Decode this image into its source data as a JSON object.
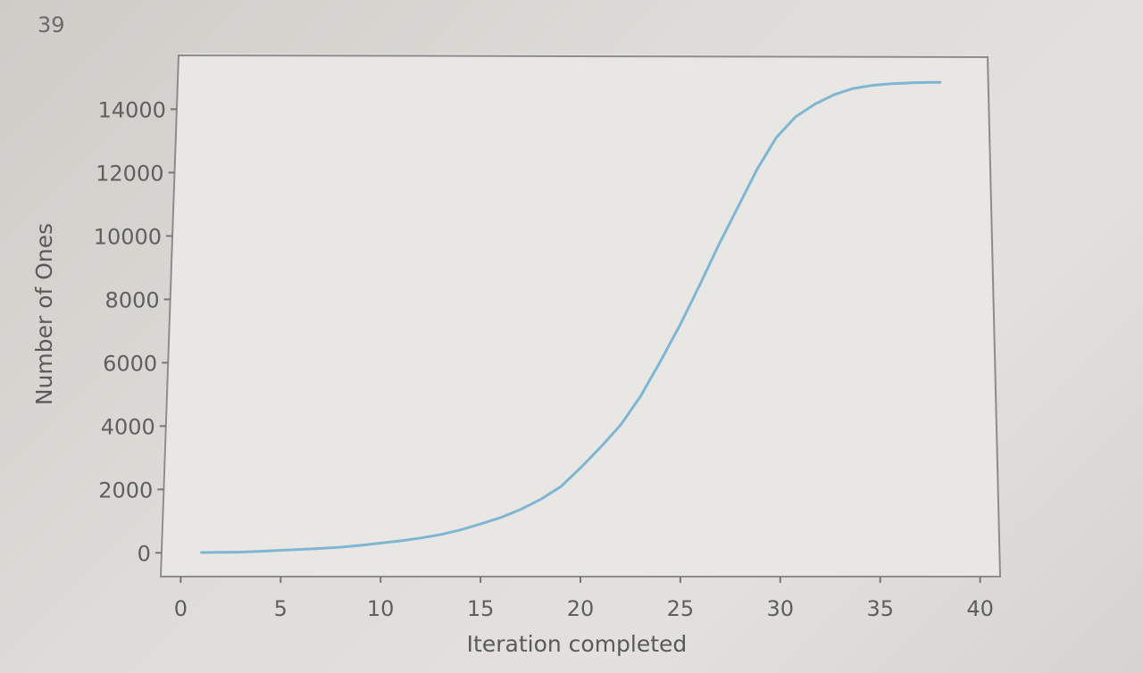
{
  "page": {
    "number": "39"
  },
  "chart_data": {
    "type": "line",
    "title": "",
    "xlabel": "Iteration completed",
    "ylabel": "Number of Ones",
    "xlim": [
      -1,
      41
    ],
    "ylim": [
      -750,
      15700
    ],
    "xticks": [
      0,
      5,
      10,
      15,
      20,
      25,
      30,
      35,
      40
    ],
    "yticks": [
      0,
      2000,
      4000,
      6000,
      8000,
      10000,
      12000,
      14000
    ],
    "grid": false,
    "series_color": "#7fb6d3",
    "series": [
      {
        "x": [
          1,
          2,
          3,
          4,
          5,
          6,
          7,
          8,
          9,
          10,
          11,
          12,
          13,
          14,
          15,
          16,
          17,
          18,
          19,
          20,
          21,
          22,
          23,
          24,
          25,
          26,
          27,
          28,
          29,
          30,
          31,
          32,
          33,
          34,
          35,
          36,
          37,
          38,
          38.5
        ],
        "y": [
          10,
          15,
          25,
          50,
          80,
          110,
          140,
          180,
          240,
          310,
          380,
          470,
          580,
          730,
          920,
          1120,
          1380,
          1700,
          2100,
          2700,
          3350,
          4050,
          4950,
          6050,
          7200,
          8450,
          9750,
          10950,
          12150,
          13150,
          13800,
          14200,
          14500,
          14700,
          14800,
          14850,
          14880,
          14900,
          14900
        ]
      }
    ]
  }
}
